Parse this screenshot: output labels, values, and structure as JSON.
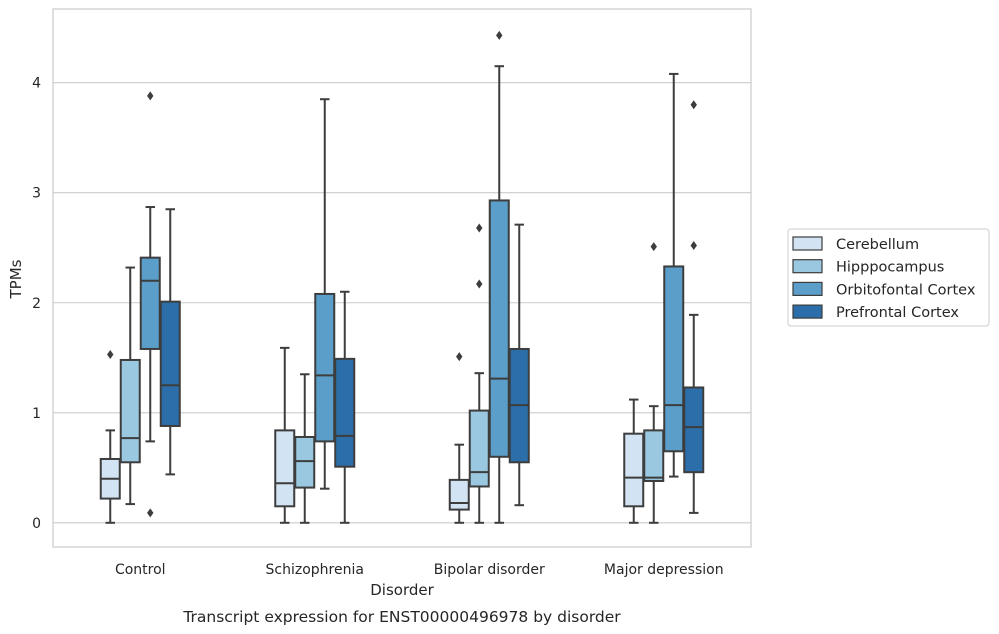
{
  "caption": "Transcript expression for ENST00000496978 by disorder",
  "chart_data": {
    "type": "boxplot",
    "title": "",
    "xlabel": "Disorder",
    "ylabel": "TPMs",
    "ylim": [
      -0.22,
      4.67
    ],
    "yticks": [
      0,
      1,
      2,
      3,
      4
    ],
    "grid": "horizontal",
    "legend_position": "right",
    "categories": [
      "Control",
      "Schizophrenia",
      "Bipolar disorder",
      "Major depression"
    ],
    "series": [
      {
        "name": "Cerebellum",
        "color": "#d2e3f3",
        "boxes": [
          {
            "whislo": 0.0,
            "q1": 0.22,
            "med": 0.4,
            "q3": 0.58,
            "whishi": 0.84,
            "fliers": [
              1.53
            ]
          },
          {
            "whislo": 0.0,
            "q1": 0.15,
            "med": 0.36,
            "q3": 0.84,
            "whishi": 1.59,
            "fliers": []
          },
          {
            "whislo": 0.0,
            "q1": 0.12,
            "med": 0.18,
            "q3": 0.39,
            "whishi": 0.71,
            "fliers": [
              1.51
            ]
          },
          {
            "whislo": 0.0,
            "q1": 0.15,
            "med": 0.41,
            "q3": 0.81,
            "whishi": 1.12,
            "fliers": []
          }
        ]
      },
      {
        "name": "Hipppocampus",
        "color": "#9ac8e0",
        "boxes": [
          {
            "whislo": 0.17,
            "q1": 0.55,
            "med": 0.77,
            "q3": 1.48,
            "whishi": 2.32,
            "fliers": []
          },
          {
            "whislo": 0.0,
            "q1": 0.32,
            "med": 0.56,
            "q3": 0.78,
            "whishi": 1.35,
            "fliers": []
          },
          {
            "whislo": 0.0,
            "q1": 0.33,
            "med": 0.46,
            "q3": 1.02,
            "whishi": 1.36,
            "fliers": [
              2.68,
              2.17
            ]
          },
          {
            "whislo": 0.0,
            "q1": 0.38,
            "med": 0.41,
            "q3": 0.84,
            "whishi": 1.06,
            "fliers": [
              2.51
            ]
          }
        ]
      },
      {
        "name": "Orbitofontal Cortex",
        "color": "#5a9ec9",
        "boxes": [
          {
            "whislo": 0.74,
            "q1": 1.58,
            "med": 2.2,
            "q3": 2.41,
            "whishi": 2.87,
            "fliers": [
              3.88,
              0.09
            ]
          },
          {
            "whislo": 0.31,
            "q1": 0.74,
            "med": 1.34,
            "q3": 2.08,
            "whishi": 3.85,
            "fliers": []
          },
          {
            "whislo": 0.0,
            "q1": 0.6,
            "med": 1.31,
            "q3": 2.93,
            "whishi": 4.15,
            "fliers": [
              4.43
            ]
          },
          {
            "whislo": 0.42,
            "q1": 0.65,
            "med": 1.07,
            "q3": 2.33,
            "whishi": 4.08,
            "fliers": []
          }
        ]
      },
      {
        "name": "Prefrontal Cortex",
        "color": "#2b6ea9",
        "boxes": [
          {
            "whislo": 0.44,
            "q1": 0.88,
            "med": 1.25,
            "q3": 2.01,
            "whishi": 2.85,
            "fliers": []
          },
          {
            "whislo": 0.0,
            "q1": 0.51,
            "med": 0.79,
            "q3": 1.49,
            "whishi": 2.1,
            "fliers": []
          },
          {
            "whislo": 0.16,
            "q1": 0.55,
            "med": 1.07,
            "q3": 1.58,
            "whishi": 2.71,
            "fliers": []
          },
          {
            "whislo": 0.09,
            "q1": 0.46,
            "med": 0.87,
            "q3": 1.23,
            "whishi": 1.89,
            "fliers": [
              3.8,
              2.52
            ]
          }
        ]
      }
    ]
  }
}
